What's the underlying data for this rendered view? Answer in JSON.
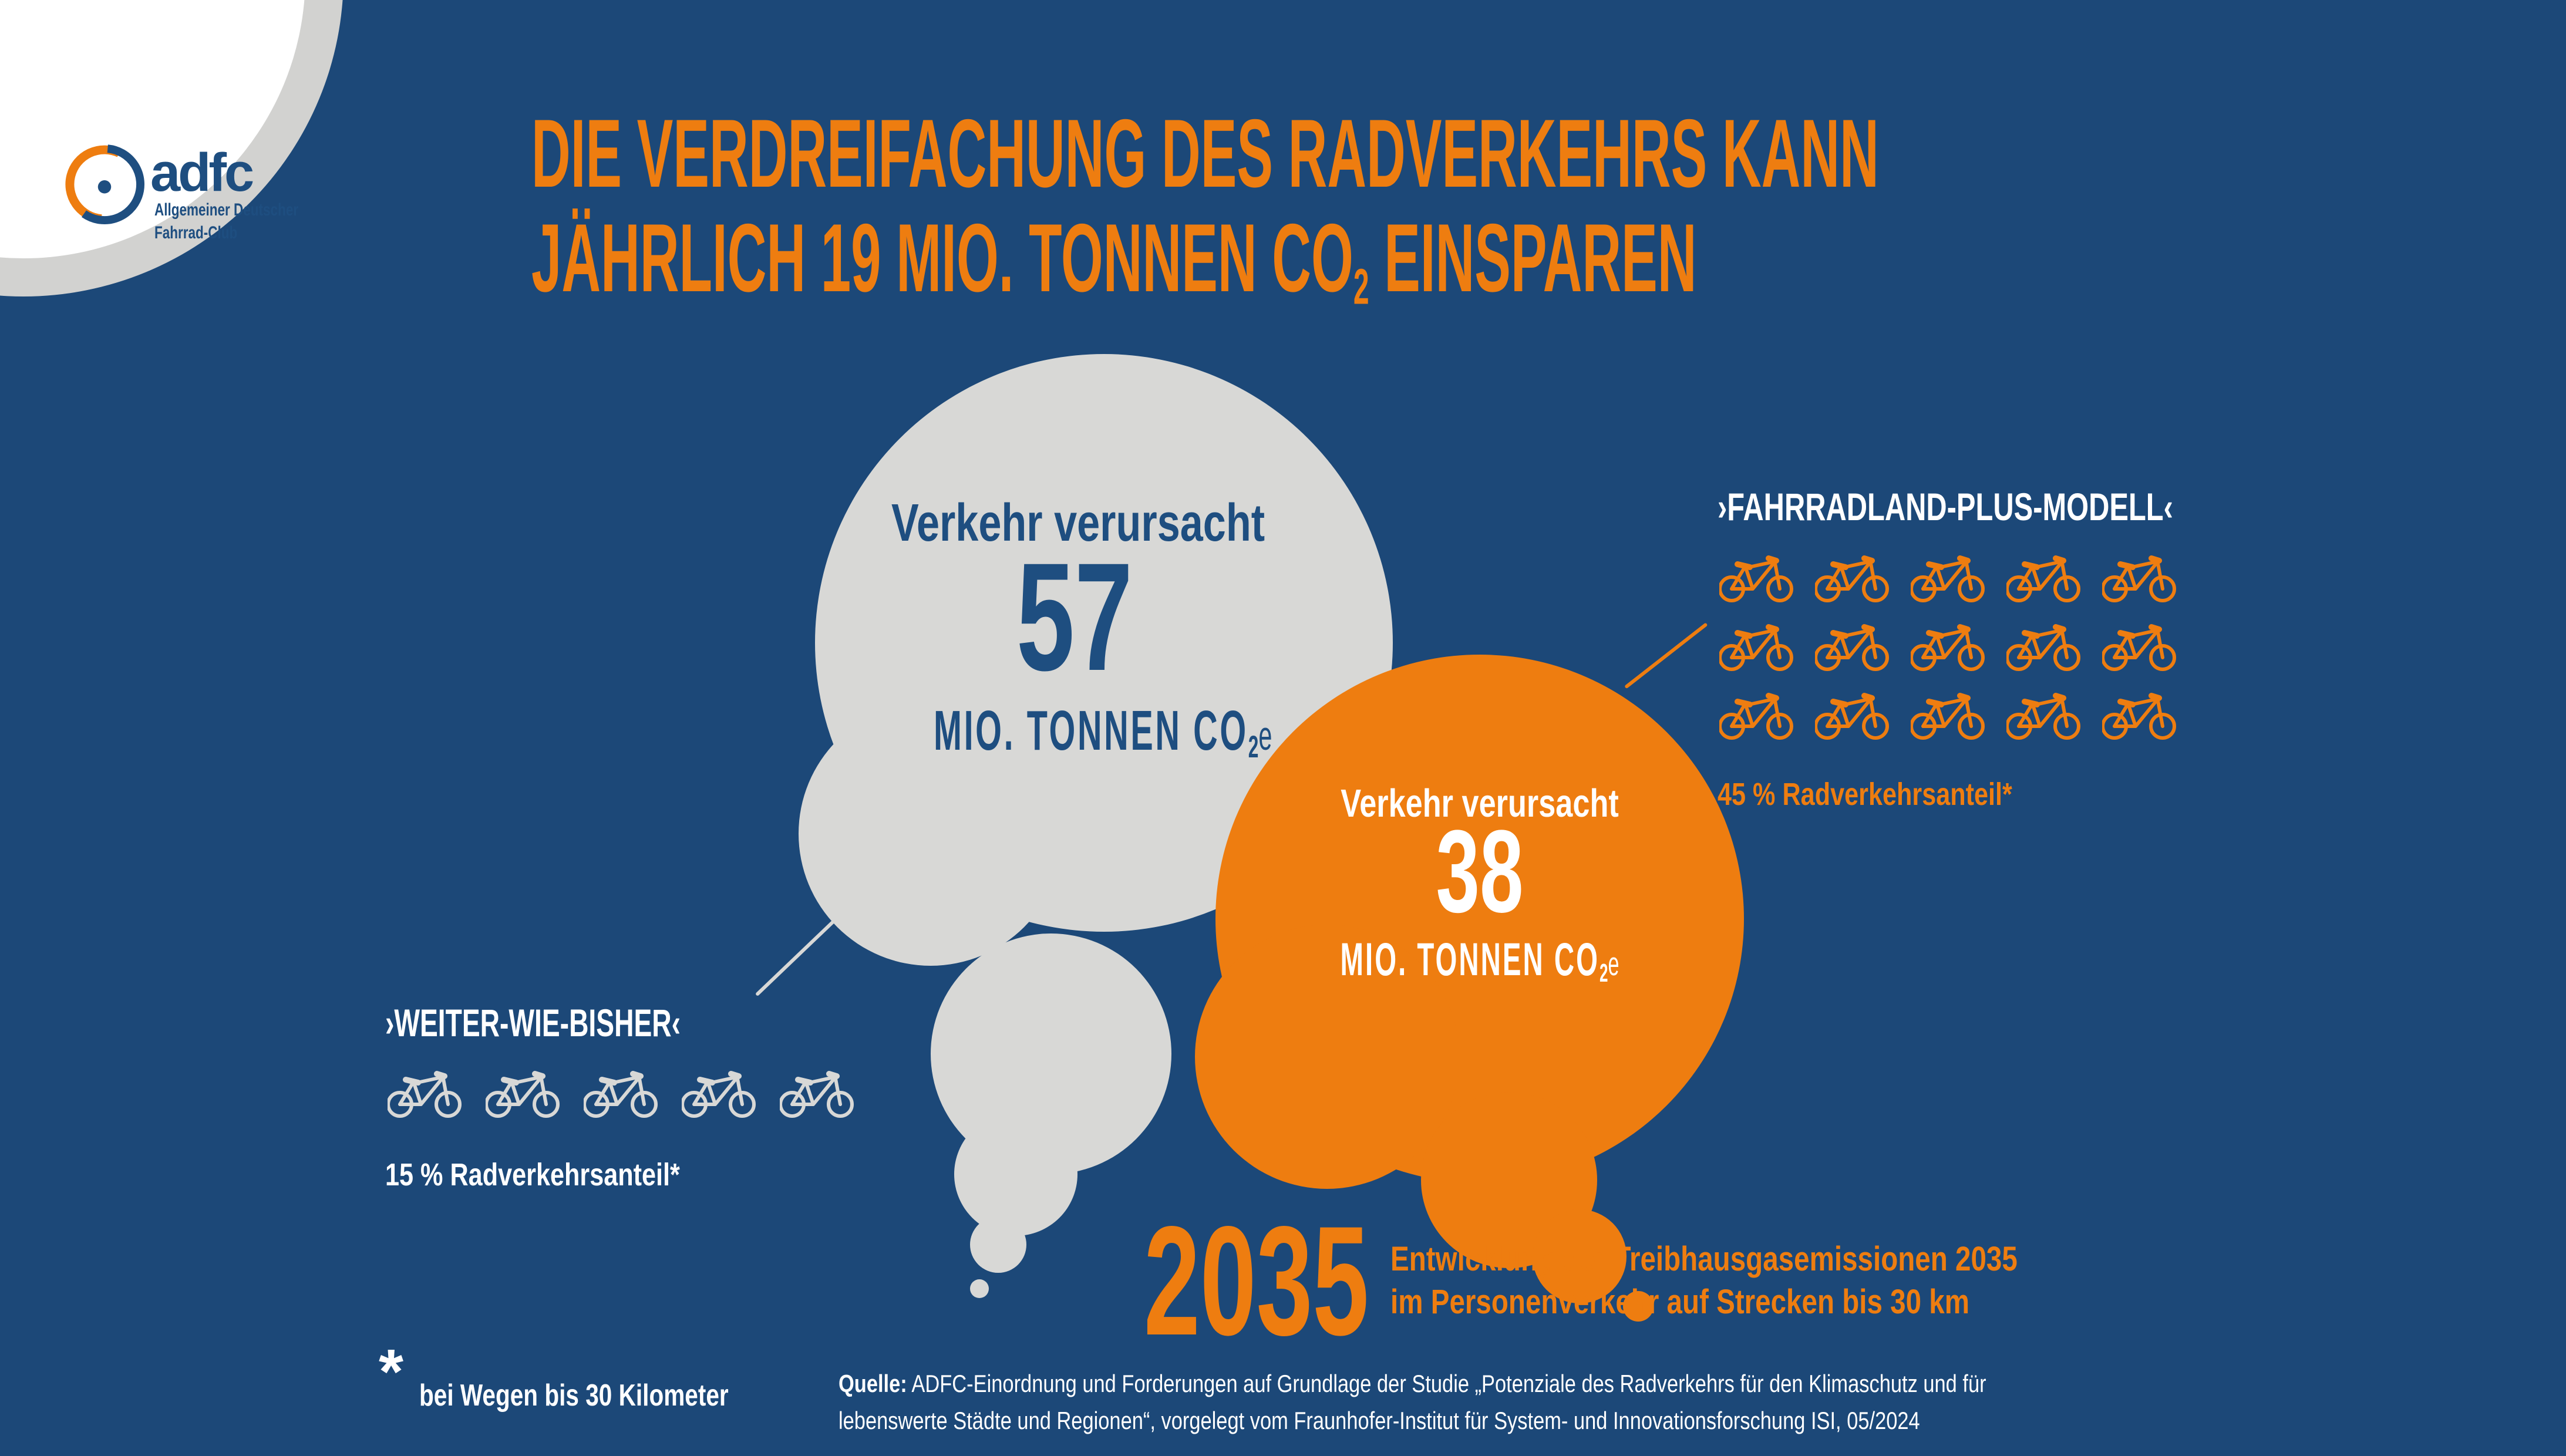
{
  "colors": {
    "background": "#1c4878",
    "accent_orange": "#ee7d10",
    "cloud_gray": "#d8d8d6",
    "text_blue": "#1e4e80",
    "white": "#ffffff"
  },
  "logo": {
    "brand": "adfc",
    "subtitle_line1": "Allgemeiner Deutscher",
    "subtitle_line2": "Fahrrad-Club"
  },
  "title": {
    "line1": "DIE VERDREIFACHUNG DES RADVERKEHRS KANN",
    "line2_pre": "JÄHRLICH 19 MIO. TONNEN CO",
    "line2_sub": "2",
    "line2_post": " EINSPAREN"
  },
  "gray_cloud": {
    "label": "Verkehr verursacht",
    "value": "57",
    "unit_pre": "MIO. TONNEN CO",
    "unit_sub": "2",
    "unit_post": "e"
  },
  "orange_cloud": {
    "label": "Verkehr verursacht",
    "value": "38",
    "unit_pre": "MIO. TONNEN CO",
    "unit_sub": "2",
    "unit_post": "e"
  },
  "scenario_current": {
    "name": "›WEITER-WIE-BISHER‹",
    "share": "15 % Radverkehrsanteil*",
    "bike_rows": 1,
    "bikes_per_row": 5
  },
  "scenario_plus": {
    "name": "›FAHRRADLAND-PLUS-MODELL‹",
    "share": "45 % Radverkehrsanteil*",
    "bike_rows": 3,
    "bikes_per_row": 5
  },
  "year_block": {
    "year": "2035",
    "desc_line1": "Entwicklung der Treibhausgasemissionen 2035",
    "desc_line2": "im Personenverkehr auf Strecken bis 30 km"
  },
  "footnote": {
    "mark": "*",
    "text": "bei Wegen bis 30 Kilometer"
  },
  "source": {
    "label": "Quelle:",
    "line1": " ADFC-Einordnung und Forderungen auf Grundlage der Studie „Potenziale des Radverkehrs für den Klimaschutz und für",
    "line2": "lebenswerte Städte und Regionen“, vorgelegt vom Fraunhofer-Institut für System- und Innovationsforschung ISI, 05/2024"
  },
  "chart_data": {
    "type": "bar",
    "title": "Die Verdreifachung des Radverkehrs kann jährlich 19 Mio. Tonnen CO2 einsparen",
    "subtitle": "Entwicklung der Treibhausgasemissionen 2035 im Personenverkehr auf Strecken bis 30 km",
    "categories": [
      "›Weiter-wie-bisher‹",
      "›Fahrradland-Plus-Modell‹"
    ],
    "series": [
      {
        "name": "Verkehr verursacht (Mio. Tonnen CO2e)",
        "values": [
          57,
          38
        ]
      },
      {
        "name": "Radverkehrsanteil (%, bei Wegen bis 30 Kilometer)",
        "values": [
          15,
          45
        ]
      },
      {
        "name": "Fahrrad-Piktogramme (Anzahl)",
        "values": [
          5,
          15
        ]
      }
    ],
    "annotations": [
      "Einsparung: 19 Mio. Tonnen CO2 jährlich",
      "Jahr: 2035",
      "* bei Wegen bis 30 Kilometer"
    ],
    "legend_position": "none",
    "grid": false
  }
}
